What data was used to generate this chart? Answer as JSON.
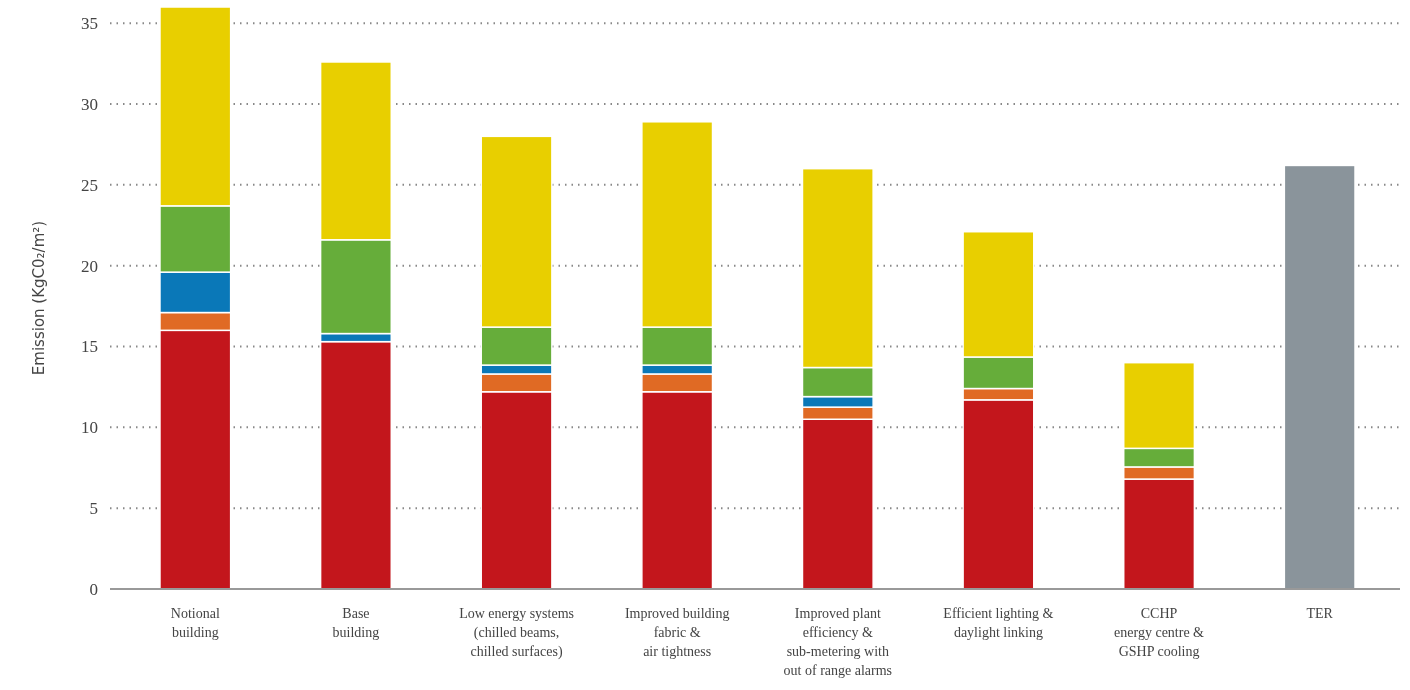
{
  "chart_data": {
    "type": "bar",
    "stacked": true,
    "ylabel": "Emission (KgC0₂/m²)",
    "categories": [
      "Notional\nbuilding",
      "Base\nbuilding",
      "Low energy systems\n(chilled beams,\nchilled surfaces)",
      "Improved building\nfabric &\nair tightness",
      "Improved plant\nefficiency &\nsub-metering with\nout of range alarms",
      "Efficient lighting &\ndaylight linking",
      "CCHP\nenergy centre &\nGSHP cooling",
      "TER"
    ],
    "series": [
      {
        "color": "#c3161c",
        "values": [
          16.0,
          15.3,
          12.2,
          12.2,
          10.5,
          11.7,
          6.8,
          null
        ]
      },
      {
        "color": "#e06a24",
        "values": [
          1.1,
          null,
          1.1,
          1.1,
          0.75,
          0.7,
          0.75,
          null
        ]
      },
      {
        "color": "#0a78b8",
        "values": [
          2.5,
          0.5,
          0.55,
          0.55,
          0.65,
          null,
          null,
          null
        ]
      },
      {
        "color": "#66ad3a",
        "values": [
          4.1,
          5.8,
          2.35,
          2.35,
          1.8,
          1.95,
          1.15,
          null
        ]
      },
      {
        "color": "#e8cf00",
        "values": [
          12.3,
          11.0,
          11.8,
          12.7,
          12.3,
          7.75,
          5.3,
          null
        ]
      },
      {
        "color": "#8a949b",
        "values": [
          null,
          null,
          null,
          null,
          null,
          null,
          null,
          26.2
        ]
      }
    ],
    "ylim": [
      0,
      36
    ],
    "yticks": [
      0,
      5,
      10,
      15,
      20,
      25,
      30,
      35
    ],
    "grid": "y"
  }
}
